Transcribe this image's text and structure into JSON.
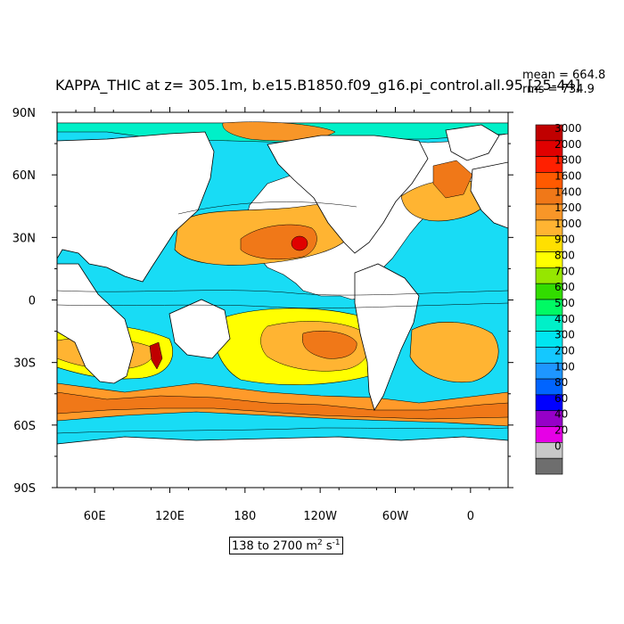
{
  "title": "KAPPA_THIC at z= 305.1m, b.e15.B1850.f09_g16.pi_control.all.95 [25-44]",
  "stats": {
    "mean": "mean = 664.8",
    "rms": "rms = 734.9"
  },
  "range_label": {
    "text": "138 to 2700 m",
    "unit_exp1": "2",
    "unit_mid": " s",
    "unit_exp2": "-1"
  },
  "map": {
    "lat_ticks": [
      {
        "value": 90,
        "label": "90N"
      },
      {
        "value": 60,
        "label": "60N"
      },
      {
        "value": 30,
        "label": "30N"
      },
      {
        "value": 0,
        "label": "0"
      },
      {
        "value": -30,
        "label": "30S"
      },
      {
        "value": -60,
        "label": "60S"
      },
      {
        "value": -90,
        "label": "90S"
      }
    ],
    "lon_ticks": [
      {
        "value": 60,
        "label": "60E"
      },
      {
        "value": 120,
        "label": "120E"
      },
      {
        "value": 180,
        "label": "180"
      },
      {
        "value": 240,
        "label": "120W"
      },
      {
        "value": 300,
        "label": "60W"
      },
      {
        "value": 360,
        "label": "0"
      }
    ],
    "lon_range": [
      30,
      390
    ],
    "lat_range": [
      -90,
      90
    ]
  },
  "colorbar": {
    "labels": [
      "3000",
      "2000",
      "1800",
      "1600",
      "1400",
      "1200",
      "1000",
      "900",
      "800",
      "700",
      "600",
      "500",
      "400",
      "300",
      "200",
      "100",
      "80",
      "60",
      "40",
      "20",
      "0"
    ],
    "colors": [
      "#c00000",
      "#e00000",
      "#ff2000",
      "#ff5a00",
      "#f07818",
      "#f89628",
      "#ffb432",
      "#ffe000",
      "#ffff00",
      "#96e600",
      "#32dc00",
      "#00fa64",
      "#00f0c8",
      "#00e6f0",
      "#14c8ff",
      "#1e96ff",
      "#0064ff",
      "#0000ff",
      "#9600c8",
      "#e600e6",
      "#c8c8c8",
      "#6e6e6e"
    ]
  }
}
